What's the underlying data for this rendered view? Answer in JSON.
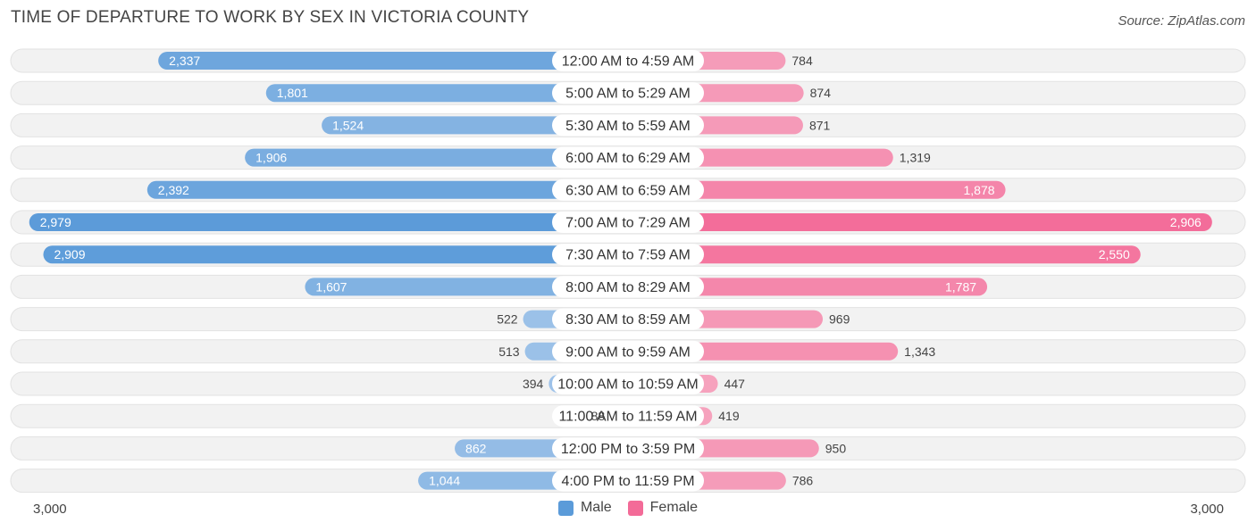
{
  "header": {
    "title": "TIME OF DEPARTURE TO WORK BY SEX IN VICTORIA COUNTY",
    "source": "Source: ZipAtlas.com"
  },
  "legend": {
    "male_label": "Male",
    "female_label": "Female"
  },
  "axis": {
    "left_label": "3,000",
    "right_label": "3,000"
  },
  "colors": {
    "male_strong": "#5b9bd9",
    "male_light": "#a4c6ea",
    "female_strong": "#f36b98",
    "female_light": "#f6a8c1",
    "row_bg": "#f2f2f2",
    "label_bg": "#ffffff"
  },
  "chart_data": {
    "type": "bar",
    "orientation": "diverging-horizontal",
    "title": "TIME OF DEPARTURE TO WORK BY SEX IN VICTORIA COUNTY",
    "xlim": [
      -3000,
      3000
    ],
    "legend_position": "bottom-center",
    "categories": [
      "12:00 AM to 4:59 AM",
      "5:00 AM to 5:29 AM",
      "5:30 AM to 5:59 AM",
      "6:00 AM to 6:29 AM",
      "6:30 AM to 6:59 AM",
      "7:00 AM to 7:29 AM",
      "7:30 AM to 7:59 AM",
      "8:00 AM to 8:29 AM",
      "8:30 AM to 8:59 AM",
      "9:00 AM to 9:59 AM",
      "10:00 AM to 10:59 AM",
      "11:00 AM to 11:59 AM",
      "12:00 PM to 3:59 PM",
      "4:00 PM to 11:59 PM"
    ],
    "series": [
      {
        "name": "Male",
        "values": [
          2337,
          1801,
          1524,
          1906,
          2392,
          2979,
          2909,
          1607,
          522,
          513,
          394,
          88,
          862,
          1044
        ],
        "labels": [
          "2,337",
          "1,801",
          "1,524",
          "1,906",
          "2,392",
          "2,979",
          "2,909",
          "1,607",
          "522",
          "513",
          "394",
          "88",
          "862",
          "1,044"
        ]
      },
      {
        "name": "Female",
        "values": [
          784,
          874,
          871,
          1319,
          1878,
          2906,
          2550,
          1787,
          969,
          1343,
          447,
          419,
          950,
          786
        ],
        "labels": [
          "784",
          "874",
          "871",
          "1,319",
          "1,878",
          "2,906",
          "2,550",
          "1,787",
          "969",
          "1,343",
          "447",
          "419",
          "950",
          "786"
        ]
      }
    ]
  }
}
